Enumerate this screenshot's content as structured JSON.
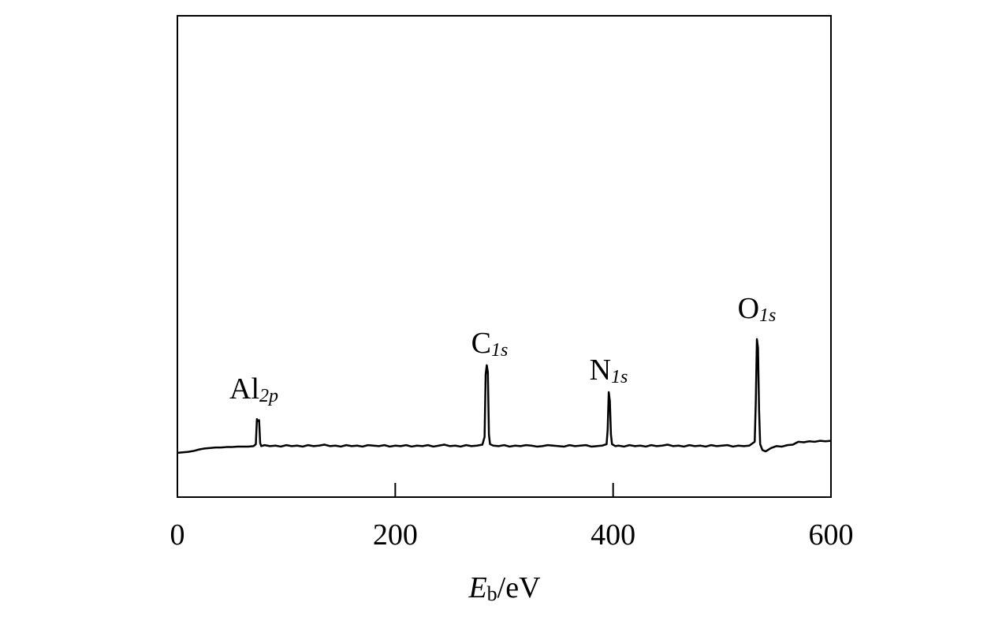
{
  "chart_data": {
    "type": "line",
    "color": "#000000",
    "x_label": {
      "symbol": "E",
      "sub": "b",
      "unit": "/eV"
    },
    "xlim": [
      0,
      600
    ],
    "xticks": [
      0,
      200,
      400,
      600
    ],
    "ylim": [
      0,
      100
    ],
    "annotations": [
      {
        "text": "Al",
        "sub": "2p"
      },
      {
        "text": "C",
        "sub": "1s"
      },
      {
        "text": "N",
        "sub": "1s"
      },
      {
        "text": "O",
        "sub": "1s"
      }
    ],
    "x": [
      0,
      5,
      10,
      15,
      20,
      25,
      30,
      35,
      40,
      45,
      50,
      55,
      60,
      65,
      70,
      72,
      73,
      74,
      75,
      76,
      77,
      80,
      85,
      90,
      95,
      100,
      105,
      110,
      115,
      120,
      125,
      130,
      135,
      140,
      145,
      150,
      155,
      160,
      165,
      170,
      175,
      180,
      185,
      190,
      195,
      200,
      205,
      210,
      215,
      220,
      225,
      230,
      235,
      240,
      245,
      250,
      255,
      260,
      265,
      270,
      275,
      280,
      282,
      283,
      284,
      285,
      286,
      287,
      290,
      295,
      300,
      305,
      310,
      315,
      320,
      325,
      330,
      335,
      340,
      345,
      350,
      355,
      360,
      365,
      370,
      375,
      380,
      385,
      390,
      394,
      395,
      396,
      397,
      398,
      399,
      402,
      405,
      410,
      415,
      420,
      425,
      430,
      435,
      440,
      445,
      450,
      455,
      460,
      465,
      470,
      475,
      480,
      485,
      490,
      495,
      500,
      505,
      510,
      515,
      520,
      525,
      530,
      531,
      532,
      533,
      534,
      535,
      537,
      540,
      545,
      550,
      555,
      560,
      565,
      570,
      575,
      580,
      585,
      590,
      595,
      600
    ],
    "values": [
      9.2,
      9.3,
      9.4,
      9.6,
      9.9,
      10.1,
      10.2,
      10.3,
      10.3,
      10.4,
      10.4,
      10.5,
      10.5,
      10.5,
      10.6,
      11.0,
      16.2,
      15.8,
      16.0,
      11.2,
      10.6,
      10.8,
      10.6,
      10.7,
      10.5,
      10.8,
      10.6,
      10.7,
      10.5,
      10.8,
      10.6,
      10.7,
      10.9,
      10.6,
      10.7,
      10.5,
      10.8,
      10.6,
      10.7,
      10.5,
      10.8,
      10.7,
      10.6,
      10.8,
      10.5,
      10.7,
      10.6,
      10.8,
      10.5,
      10.7,
      10.6,
      10.8,
      10.5,
      10.7,
      10.9,
      10.6,
      10.7,
      10.5,
      10.8,
      10.6,
      10.7,
      10.9,
      12.5,
      25.5,
      27.4,
      26.0,
      13.0,
      11.0,
      10.7,
      10.6,
      10.8,
      10.5,
      10.7,
      10.6,
      10.8,
      10.7,
      10.5,
      10.6,
      10.8,
      10.7,
      10.6,
      10.5,
      10.8,
      10.6,
      10.7,
      10.8,
      10.5,
      10.6,
      10.7,
      11.0,
      14.0,
      21.8,
      20.0,
      13.0,
      11.0,
      10.6,
      10.7,
      10.5,
      10.8,
      10.6,
      10.7,
      10.5,
      10.8,
      10.6,
      10.7,
      10.9,
      10.6,
      10.7,
      10.5,
      10.8,
      10.6,
      10.7,
      10.5,
      10.8,
      10.6,
      10.7,
      10.8,
      10.5,
      10.7,
      10.6,
      10.7,
      11.5,
      20.0,
      32.8,
      31.0,
      18.0,
      11.0,
      9.8,
      9.5,
      10.2,
      10.6,
      10.5,
      10.8,
      10.9,
      11.5,
      11.4,
      11.6,
      11.5,
      11.7,
      11.6,
      11.7
    ]
  }
}
